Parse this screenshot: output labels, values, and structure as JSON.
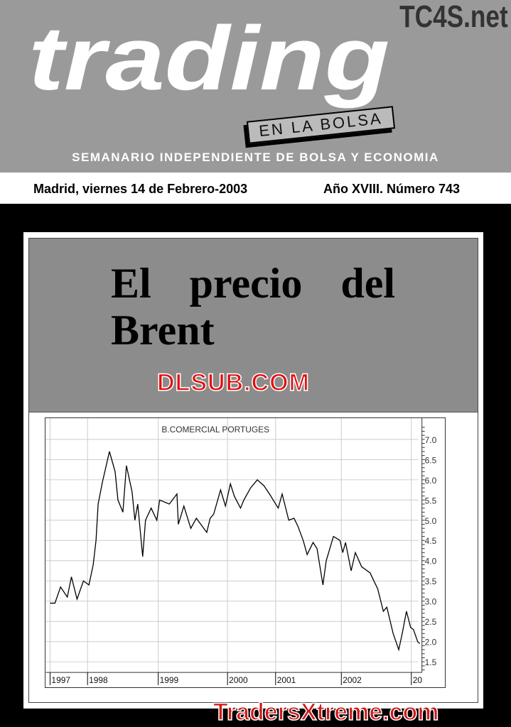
{
  "header": {
    "logo": "trading",
    "sublogo": "EN LA BOLSA",
    "tagline": "SEMANARIO INDEPENDIENTE DE BOLSA Y ECONOMIA",
    "watermark": "TC4S.net"
  },
  "issue": {
    "date": "Madrid, viernes 14 de Febrero-2003",
    "number": "Año XVIII. Número 743"
  },
  "cover": {
    "headline": "El precio del Brent",
    "watermark": "DLSUB.COM",
    "footer_watermark": "TradersXtreme.com"
  },
  "chart_data": {
    "type": "line",
    "title": "B.COMERCIAL PORTUGES",
    "ylim": [
      1.25,
      7.25
    ],
    "grid": true,
    "x_tick_labels": [
      "1997",
      "1998",
      "1999",
      "2000",
      "2001",
      "2002",
      "20"
    ],
    "y_ticks": [
      "7.0",
      "6.5",
      "6.0",
      "5.5",
      "5.0",
      "4.5",
      "4.0",
      "3.5",
      "3.0",
      "2.5",
      "2.0",
      "1.5"
    ],
    "x": [
      1997.0,
      1997.13,
      1997.28,
      1997.46,
      1997.57,
      1997.72,
      1997.89,
      1998.02,
      1998.08,
      1998.12,
      1998.15,
      1998.21,
      1998.31,
      1998.39,
      1998.43,
      1998.5,
      1998.55,
      1998.63,
      1998.67,
      1998.71,
      1998.78,
      1998.82,
      1998.9,
      1998.98,
      1999.02,
      1999.16,
      1999.27,
      1999.29,
      1999.37,
      1999.47,
      1999.55,
      1999.7,
      1999.75,
      1999.8,
      1999.9,
      1999.97,
      2000.06,
      2000.14,
      2000.27,
      2000.34,
      2000.48,
      2000.62,
      2000.76,
      2000.9,
      2000.95,
      2001.04,
      2001.1,
      2001.2,
      2001.28,
      2001.34,
      2001.42,
      2001.48,
      2001.57,
      2001.63,
      2001.72,
      2001.77,
      2001.88,
      2001.98,
      2002.02,
      2002.06,
      2002.14,
      2002.2,
      2002.29,
      2002.41,
      2002.52,
      2002.6,
      2002.65,
      2002.74,
      2002.82,
      2002.87,
      2002.93,
      2002.99,
      2003.03,
      2003.09,
      2003.12
    ],
    "y": [
      2.95,
      2.95,
      3.35,
      3.1,
      3.6,
      3.05,
      3.5,
      3.4,
      3.9,
      4.5,
      5.4,
      5.94,
      6.7,
      6.2,
      5.5,
      5.2,
      6.35,
      5.7,
      5.0,
      5.4,
      4.1,
      5.0,
      5.3,
      5.0,
      5.5,
      5.4,
      5.65,
      4.9,
      5.35,
      4.8,
      5.05,
      4.7,
      5.05,
      5.15,
      5.75,
      5.35,
      5.9,
      5.6,
      5.3,
      5.5,
      5.8,
      6.0,
      5.85,
      5.6,
      5.5,
      5.3,
      5.65,
      5.0,
      5.05,
      4.85,
      4.5,
      4.15,
      4.45,
      4.3,
      3.4,
      4.0,
      4.6,
      4.5,
      4.2,
      4.45,
      3.75,
      4.2,
      3.85,
      3.7,
      3.3,
      2.75,
      2.85,
      2.2,
      1.8,
      2.2,
      2.75,
      2.35,
      2.3,
      2.0,
      1.95
    ]
  }
}
